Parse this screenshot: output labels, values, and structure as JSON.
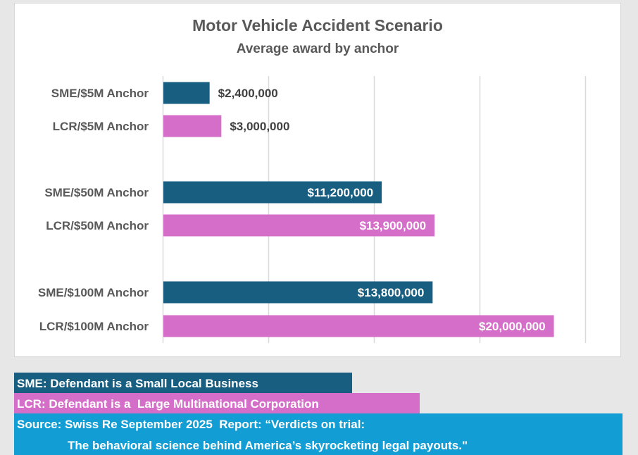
{
  "chart_data": {
    "type": "bar",
    "orientation": "horizontal",
    "title": "Motor Vehicle Accident Scenario",
    "subtitle": "Average award by anchor",
    "xlabel": "",
    "ylabel": "",
    "xlim": [
      0,
      21600000
    ],
    "x_gridline_step": 5400000,
    "x_tick_labels_visible": false,
    "grid": true,
    "categories": [
      "SME/$5M Anchor",
      "LCR/$5M Anchor",
      "SME/$50M Anchor",
      "LCR/$50M Anchor",
      "SME/$100M Anchor",
      "LCR/$100M Anchor"
    ],
    "values": [
      2400000,
      3000000,
      11200000,
      13900000,
      13800000,
      20000000
    ],
    "data_labels": [
      "$2,400,000",
      "$3,000,000",
      "$11,200,000",
      "$13,900,000",
      "$13,800,000",
      "$20,000,000"
    ],
    "series_of_bar": [
      "SME",
      "LCR",
      "SME",
      "LCR",
      "SME",
      "LCR"
    ],
    "colors": {
      "SME": "#175e80",
      "LCR": "#d56ec8"
    }
  },
  "legend": {
    "sme": "SME: Defendant is a Small Local Business",
    "lcr": "LCR: Defendant is a  Large Multinational Corporation"
  },
  "source": {
    "line1": "Source: Swiss Re September 2025  Report: “Verdicts on trial:",
    "line2": "The behavioral science behind America’s skyrocketing legal payouts.\""
  },
  "colors": {
    "source_bg": "#129dd4",
    "label_text": "#595959",
    "gridline": "#d9d9d9"
  }
}
